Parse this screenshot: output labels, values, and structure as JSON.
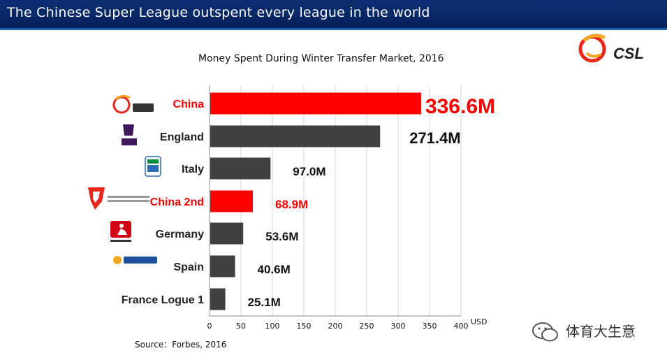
{
  "banner": {
    "title": "The Chinese Super League outspent every league in the world"
  },
  "logo": {
    "text": "CSL"
  },
  "footer": {
    "source": "Source：Forbes, 2016",
    "watermark": "体育大生意"
  },
  "colors": {
    "highlight": "#ff0000",
    "bar": "#404040",
    "banner": "#06215a"
  },
  "icons": [
    "csl-logo-icon",
    "premier-league-icon",
    "serie-a-icon",
    "china-league-one-icon",
    "bundesliga-icon",
    "liga-bbva-icon",
    "wechat-icon"
  ],
  "chart_data": {
    "type": "bar",
    "orientation": "horizontal",
    "title": "Money Spent During Winter Transfer Market, 2016",
    "categories": [
      "China",
      "England",
      "Italy",
      "China 2nd",
      "Germany",
      "Spain",
      "France Logue 1"
    ],
    "values": [
      336.6,
      271.4,
      97.0,
      68.9,
      53.6,
      40.6,
      25.1
    ],
    "data_labels": [
      "336.6M",
      "271.4M",
      "97.0M",
      "68.9M",
      "53.6M",
      "40.6M",
      "25.1M"
    ],
    "highlight": [
      true,
      false,
      false,
      true,
      false,
      false,
      false
    ],
    "xlabel": "USD",
    "xlim": [
      0,
      400
    ],
    "xticks": [
      0,
      50,
      100,
      150,
      200,
      250,
      300,
      350,
      400
    ],
    "grid": true
  }
}
